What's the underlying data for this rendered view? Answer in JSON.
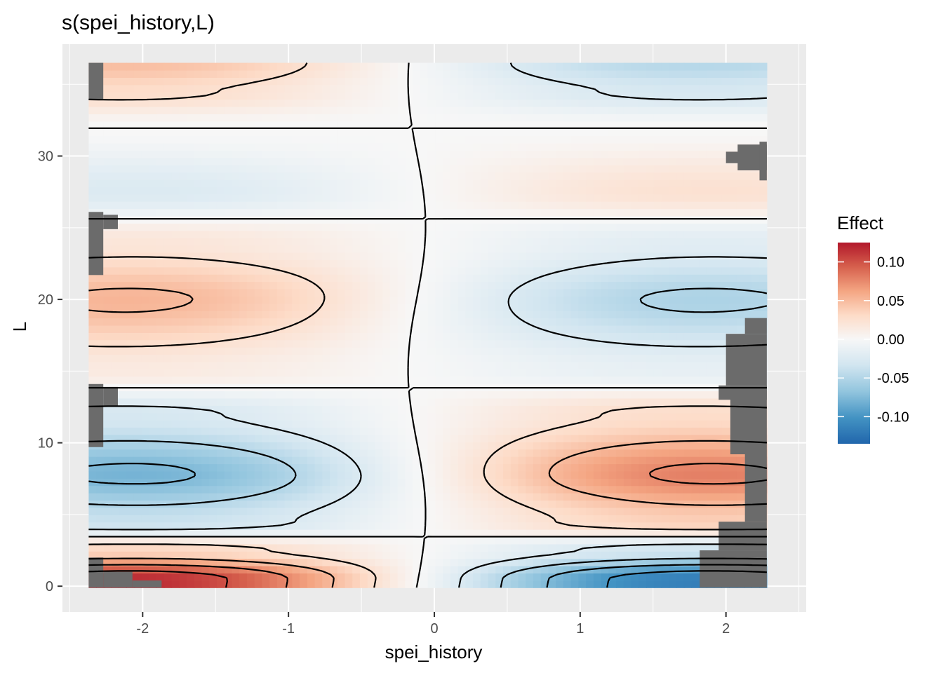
{
  "chart_data": {
    "type": "heatmap",
    "title": "s(spei_history,L)",
    "xlabel": "spei_history",
    "ylabel": "L",
    "xlim": [
      -2.55,
      2.55
    ],
    "ylim": [
      -1.8,
      37.8
    ],
    "data_x_range": [
      -2.37,
      2.28
    ],
    "data_y_range": [
      -0.1,
      36.5
    ],
    "x_ticks": [
      -2,
      -1,
      0,
      1,
      2
    ],
    "x_tick_labels": [
      "-2",
      "-1",
      "0",
      "1",
      "2"
    ],
    "y_ticks": [
      0,
      10,
      20,
      30
    ],
    "y_tick_labels": [
      "0",
      "10",
      "20",
      "30"
    ],
    "grid": true,
    "legend": {
      "title": "Effect",
      "position": "right",
      "type": "colorbar",
      "range": [
        -0.135,
        0.125
      ],
      "ticks": [
        0.1,
        0.05,
        0.0,
        -0.05,
        -0.1
      ],
      "tick_labels": [
        "0.10",
        "0.05",
        "0.00",
        "-0.05",
        "-0.10"
      ],
      "colors": [
        "#2166ac",
        "#4393c3",
        "#92c5de",
        "#d1e5f0",
        "#f7f7f7",
        "#fddbc7",
        "#f4a582",
        "#d6604d",
        "#b2182b"
      ]
    },
    "na_color": "#6b6b6b",
    "panel_background": "#ebebeb",
    "contour_levels": [
      -0.1,
      -0.075,
      -0.05,
      -0.025,
      0,
      0.025,
      0.05,
      0.075,
      0.1
    ],
    "surface_bands": [
      {
        "L": 0.5,
        "amplitude": 0.12
      },
      {
        "L": 2.5,
        "amplitude": 0.035
      },
      {
        "L": 4.5,
        "amplitude": -0.04
      },
      {
        "L": 7.8,
        "amplitude": -0.082
      },
      {
        "L": 12.0,
        "amplitude": -0.03
      },
      {
        "L": 15.0,
        "amplitude": 0.015
      },
      {
        "L": 20.0,
        "amplitude": 0.055
      },
      {
        "L": 24.0,
        "amplitude": 0.02
      },
      {
        "L": 27.5,
        "amplitude": -0.025
      },
      {
        "L": 32.0,
        "amplitude": 0.0
      },
      {
        "L": 34.5,
        "amplitude": 0.03
      },
      {
        "L": 36.5,
        "amplitude": 0.05
      }
    ],
    "missing_regions": [
      {
        "x_min": -2.37,
        "x_max": -2.27,
        "y_min": -0.1,
        "y_max": 2.0
      },
      {
        "x_min": -2.27,
        "x_max": -2.07,
        "y_min": -0.1,
        "y_max": 1.0
      },
      {
        "x_min": -2.07,
        "x_max": -1.87,
        "y_min": -0.1,
        "y_max": 0.4
      },
      {
        "x_min": -2.37,
        "x_max": -2.27,
        "y_min": 9.7,
        "y_max": 14.1
      },
      {
        "x_min": -2.27,
        "x_max": -2.17,
        "y_min": 12.6,
        "y_max": 13.9
      },
      {
        "x_min": -2.37,
        "x_max": -2.27,
        "y_min": 21.7,
        "y_max": 26.1
      },
      {
        "x_min": -2.27,
        "x_max": -2.17,
        "y_min": 24.9,
        "y_max": 25.9
      },
      {
        "x_min": -2.37,
        "x_max": -2.27,
        "y_min": 33.9,
        "y_max": 36.5
      },
      {
        "x_min": 1.82,
        "x_max": 2.28,
        "y_min": -0.1,
        "y_max": 2.5
      },
      {
        "x_min": 1.95,
        "x_max": 2.28,
        "y_min": 2.5,
        "y_max": 4.5
      },
      {
        "x_min": 2.13,
        "x_max": 2.28,
        "y_min": 4.5,
        "y_max": 9.2
      },
      {
        "x_min": 2.03,
        "x_max": 2.28,
        "y_min": 9.2,
        "y_max": 14.0
      },
      {
        "x_min": 1.95,
        "x_max": 2.28,
        "y_min": 13.0,
        "y_max": 14.0
      },
      {
        "x_min": 2.0,
        "x_max": 2.28,
        "y_min": 14.0,
        "y_max": 17.6
      },
      {
        "x_min": 2.13,
        "x_max": 2.28,
        "y_min": 17.6,
        "y_max": 18.7
      },
      {
        "x_min": 2.0,
        "x_max": 2.28,
        "y_min": 29.5,
        "y_max": 30.3
      },
      {
        "x_min": 2.08,
        "x_max": 2.28,
        "y_min": 29.0,
        "y_max": 30.8
      },
      {
        "x_min": 2.23,
        "x_max": 2.28,
        "y_min": 28.3,
        "y_max": 31.0
      }
    ]
  }
}
